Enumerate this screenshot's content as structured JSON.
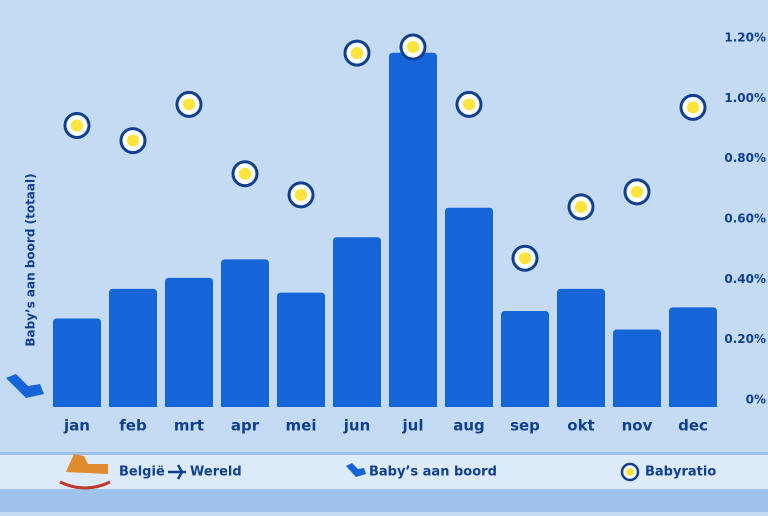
{
  "chart_data": {
    "type": "bar_line",
    "y_label": "Baby’s aan boord (totaal)",
    "route": [
      "België",
      "Wereld"
    ],
    "categories": [
      "jan",
      "feb",
      "mrt",
      "apr",
      "mei",
      "jun",
      "jul",
      "aug",
      "sep",
      "okt",
      "nov",
      "dec"
    ],
    "series": [
      {
        "name": "Baby’s aan boord",
        "color": "#1565d8",
        "type": "bar",
        "values": [
          24,
          32,
          35,
          40,
          31,
          46,
          96,
          54,
          26,
          32,
          21,
          27
        ]
      },
      {
        "name": "Babyratio",
        "color": "#fbe53a",
        "type": "point",
        "axis": "y2",
        "values": [
          0.91,
          0.86,
          0.98,
          0.75,
          0.68,
          1.15,
          1.17,
          0.98,
          0.47,
          0.64,
          0.69,
          0.97
        ]
      }
    ],
    "ylim": [
      0,
      100
    ],
    "y2lim": [
      0,
      1.2
    ],
    "y2ticks": [
      {
        "value": 0,
        "label": "0%"
      },
      {
        "value": 0.2,
        "label": "0.20%"
      },
      {
        "value": 0.4,
        "label": "0.40%"
      },
      {
        "value": 0.6,
        "label": "0.60%"
      },
      {
        "value": 0.8,
        "label": "0.80%"
      },
      {
        "value": 1.0,
        "label": "1.00%"
      },
      {
        "value": 1.2,
        "label": "1.20%"
      }
    ]
  }
}
